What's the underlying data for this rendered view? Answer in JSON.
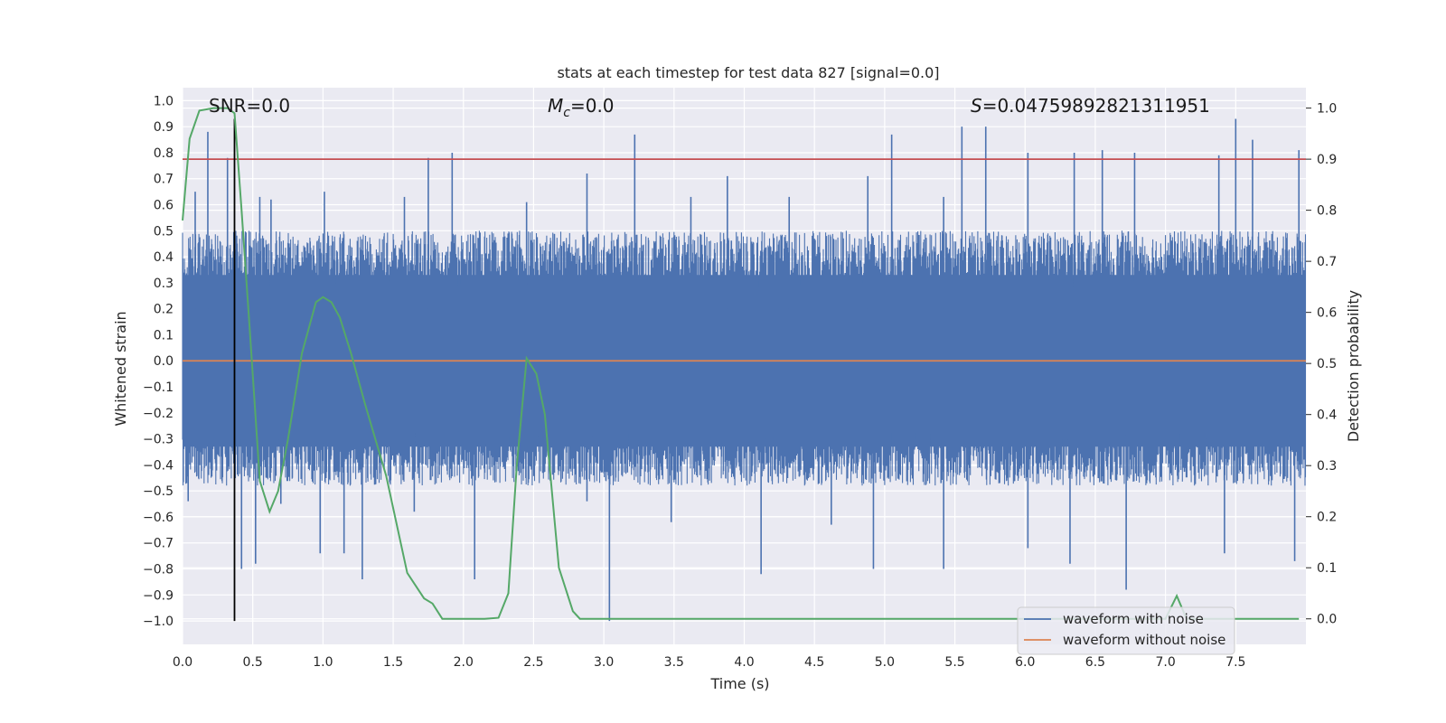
{
  "chart_data": {
    "type": "line",
    "title": "stats at each timestep for test data 827 [signal=0.0]",
    "xlabel": "Time (s)",
    "ylabel": "Whitened strain",
    "ylabel_right": "Detection probability",
    "xlim": [
      0.0,
      8.0
    ],
    "ylim": [
      -1.09,
      1.05
    ],
    "ylim_right": [
      -0.05,
      1.04
    ],
    "x_ticks": [
      "0.0",
      "0.5",
      "1.0",
      "1.5",
      "2.0",
      "2.5",
      "3.0",
      "3.5",
      "4.0",
      "4.5",
      "5.0",
      "5.5",
      "6.0",
      "6.5",
      "7.0",
      "7.5"
    ],
    "y_ticks": [
      "1.0",
      "0.9",
      "0.8",
      "0.7",
      "0.6",
      "0.5",
      "0.4",
      "0.3",
      "0.2",
      "0.1",
      "0.0",
      "−0.1",
      "−0.2",
      "−0.3",
      "−0.4",
      "−0.5",
      "−0.6",
      "−0.7",
      "−0.8",
      "−0.9",
      "−1.0"
    ],
    "y_tick_values": [
      1.0,
      0.9,
      0.8,
      0.7,
      0.6,
      0.5,
      0.4,
      0.3,
      0.2,
      0.1,
      0.0,
      -0.1,
      -0.2,
      -0.3,
      -0.4,
      -0.5,
      -0.6,
      -0.7,
      -0.8,
      -0.9,
      -1.0
    ],
    "y_right_ticks": [
      "1.0",
      "0.9",
      "0.8",
      "0.7",
      "0.6",
      "0.5",
      "0.4",
      "0.3",
      "0.2",
      "0.1",
      "0.0"
    ],
    "y_right_tick_values": [
      1.0,
      0.9,
      0.8,
      0.7,
      0.6,
      0.5,
      0.4,
      0.3,
      0.2,
      0.1,
      0.0
    ],
    "noise": {
      "envelope_pos": 0.5,
      "envelope_neg": -0.48,
      "peak_samples": [
        {
          "t": 0.09,
          "v": 0.65
        },
        {
          "t": 0.18,
          "v": 0.88
        },
        {
          "t": 0.32,
          "v": 0.78
        },
        {
          "t": 0.55,
          "v": 0.63
        },
        {
          "t": 0.63,
          "v": 0.62
        },
        {
          "t": 1.01,
          "v": 0.65
        },
        {
          "t": 1.58,
          "v": 0.63
        },
        {
          "t": 1.75,
          "v": 0.78
        },
        {
          "t": 1.92,
          "v": 0.8
        },
        {
          "t": 2.45,
          "v": 0.61
        },
        {
          "t": 2.88,
          "v": 0.72
        },
        {
          "t": 3.22,
          "v": 0.87
        },
        {
          "t": 3.62,
          "v": 0.63
        },
        {
          "t": 3.88,
          "v": 0.71
        },
        {
          "t": 4.32,
          "v": 0.63
        },
        {
          "t": 4.88,
          "v": 0.71
        },
        {
          "t": 5.05,
          "v": 0.87
        },
        {
          "t": 5.42,
          "v": 0.63
        },
        {
          "t": 5.55,
          "v": 0.9
        },
        {
          "t": 5.72,
          "v": 0.9
        },
        {
          "t": 6.02,
          "v": 0.8
        },
        {
          "t": 6.35,
          "v": 0.8
        },
        {
          "t": 6.55,
          "v": 0.81
        },
        {
          "t": 6.78,
          "v": 0.8
        },
        {
          "t": 7.38,
          "v": 0.79
        },
        {
          "t": 7.5,
          "v": 0.93
        },
        {
          "t": 7.62,
          "v": 0.85
        },
        {
          "t": 7.95,
          "v": 0.81
        }
      ],
      "trough_samples": [
        {
          "t": 0.04,
          "v": -0.54
        },
        {
          "t": 0.42,
          "v": -0.8
        },
        {
          "t": 0.52,
          "v": -0.78
        },
        {
          "t": 0.7,
          "v": -0.55
        },
        {
          "t": 0.98,
          "v": -0.74
        },
        {
          "t": 1.15,
          "v": -0.74
        },
        {
          "t": 1.28,
          "v": -0.84
        },
        {
          "t": 1.65,
          "v": -0.58
        },
        {
          "t": 2.08,
          "v": -0.84
        },
        {
          "t": 2.88,
          "v": -0.54
        },
        {
          "t": 3.04,
          "v": -1.0
        },
        {
          "t": 3.48,
          "v": -0.62
        },
        {
          "t": 4.12,
          "v": -0.82
        },
        {
          "t": 4.62,
          "v": -0.63
        },
        {
          "t": 4.92,
          "v": -0.8
        },
        {
          "t": 5.42,
          "v": -0.8
        },
        {
          "t": 6.02,
          "v": -0.72
        },
        {
          "t": 6.32,
          "v": -0.78
        },
        {
          "t": 6.72,
          "v": -0.88
        },
        {
          "t": 7.42,
          "v": -0.74
        },
        {
          "t": 7.92,
          "v": -0.77
        }
      ]
    },
    "series": [
      {
        "name": "waveform with noise",
        "color": "#4c72b0"
      },
      {
        "name": "waveform without noise",
        "color": "#dd8452",
        "y": 0.0
      },
      {
        "name": "detection probability",
        "color": "#55a868",
        "axis": "right",
        "x": [
          0.0,
          0.05,
          0.12,
          0.22,
          0.32,
          0.37,
          0.42,
          0.48,
          0.55,
          0.62,
          0.68,
          0.75,
          0.85,
          0.95,
          1.0,
          1.06,
          1.12,
          1.2,
          1.3,
          1.45,
          1.6,
          1.72,
          1.78,
          1.85,
          2.0,
          2.15,
          2.25,
          2.32,
          2.38,
          2.45,
          2.52,
          2.58,
          2.68,
          2.78,
          2.83,
          3.0,
          5.0,
          7.0,
          7.08,
          7.15,
          7.95
        ],
        "y": [
          0.78,
          0.94,
          0.995,
          1.0,
          1.0,
          0.99,
          0.8,
          0.56,
          0.27,
          0.21,
          0.25,
          0.35,
          0.52,
          0.62,
          0.63,
          0.62,
          0.59,
          0.52,
          0.42,
          0.28,
          0.09,
          0.04,
          0.03,
          0.0,
          0.0,
          0.0,
          0.002,
          0.05,
          0.3,
          0.51,
          0.48,
          0.4,
          0.1,
          0.015,
          0.0,
          0.0,
          0.0,
          0.0,
          0.045,
          0.0,
          0.0
        ]
      }
    ],
    "threshold": {
      "value": 0.9,
      "axis": "right",
      "color": "#c44e52"
    },
    "marker": {
      "t": 0.37,
      "color": "#000000"
    },
    "annotations": {
      "snr": "SNR=0.0",
      "mc_symbol": "M",
      "mc_sub": "c",
      "mc_value": "=0.0",
      "s_symbol": "S",
      "s_value": "=0.04759892821311951"
    },
    "legend": {
      "position": "bottom-right",
      "entries": [
        "waveform with noise",
        "waveform without noise"
      ]
    }
  }
}
